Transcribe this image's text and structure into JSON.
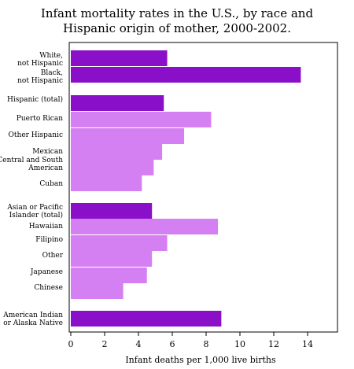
{
  "chart_data": {
    "type": "bar",
    "orientation": "horizontal",
    "title": "Infant mortality rates in the U.S., by race and Hispanic origin of mother, 2000-2002.",
    "title_lines": [
      "Infant mortality rates in the U.S., by race and",
      "Hispanic origin of mother, 2000-2002."
    ],
    "xlabel": "Infant deaths per 1,000 live births",
    "ylabel": "",
    "xlim": [
      0,
      16
    ],
    "xticks": [
      0,
      2,
      4,
      6,
      8,
      10,
      12,
      14
    ],
    "grid": false,
    "colors": {
      "group": "#8a0fc9",
      "subgroup": "#d580f2"
    },
    "categories": [
      {
        "label": [
          "White,",
          "not Hispanic"
        ],
        "value": 5.7,
        "kind": "group"
      },
      {
        "label": [
          "Black,",
          "not Hispanic"
        ],
        "value": 13.6,
        "kind": "group"
      },
      {
        "label": [
          "Hispanic (total)"
        ],
        "value": 5.5,
        "kind": "group"
      },
      {
        "label": [
          "Puerto Rican"
        ],
        "value": 8.3,
        "kind": "subgroup"
      },
      {
        "label": [
          "Other Hispanic"
        ],
        "value": 6.7,
        "kind": "subgroup"
      },
      {
        "label": [
          "Mexican"
        ],
        "value": 5.4,
        "kind": "subgroup"
      },
      {
        "label": [
          "Central and South",
          "American"
        ],
        "value": 4.9,
        "kind": "subgroup"
      },
      {
        "label": [
          "Cuban"
        ],
        "value": 4.2,
        "kind": "subgroup"
      },
      {
        "label": [
          "Asian or Pacific",
          "Islander (total)"
        ],
        "value": 4.8,
        "kind": "group"
      },
      {
        "label": [
          "Hawaiian"
        ],
        "value": 8.7,
        "kind": "subgroup"
      },
      {
        "label": [
          "Filipino"
        ],
        "value": 5.7,
        "kind": "subgroup"
      },
      {
        "label": [
          "Other"
        ],
        "value": 4.8,
        "kind": "subgroup"
      },
      {
        "label": [
          "Japanese"
        ],
        "value": 4.5,
        "kind": "subgroup"
      },
      {
        "label": [
          "Chinese"
        ],
        "value": 3.1,
        "kind": "subgroup"
      },
      {
        "label": [
          "American Indian",
          "or Alaska Native"
        ],
        "value": 8.9,
        "kind": "group"
      }
    ]
  }
}
